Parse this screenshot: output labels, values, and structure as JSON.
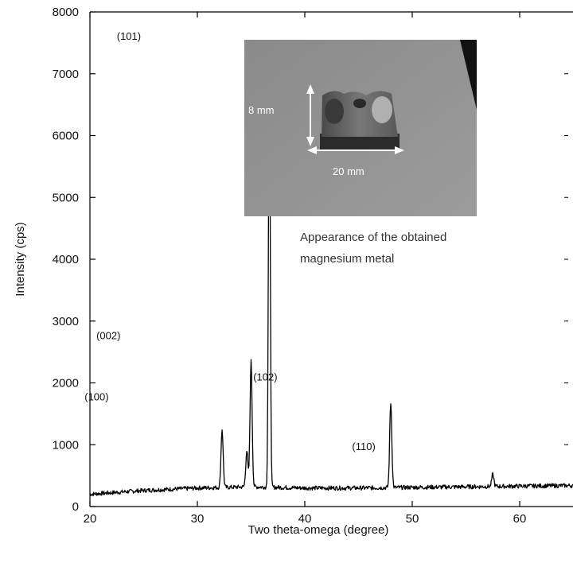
{
  "chart_data": {
    "type": "line",
    "xlabel": "Two theta-omega (degree)",
    "ylabel": "Intensity (cps)",
    "xlim": [
      20,
      65
    ],
    "ylim": [
      0,
      8000
    ],
    "x_ticks": [
      20,
      30,
      40,
      50,
      60
    ],
    "y_ticks": [
      0,
      1000,
      2000,
      3000,
      4000,
      5000,
      6000,
      7000,
      8000
    ],
    "grid": false,
    "baseline": [
      [
        20,
        200
      ],
      [
        25,
        260
      ],
      [
        30,
        300
      ],
      [
        35,
        320
      ],
      [
        40,
        300
      ],
      [
        45,
        300
      ],
      [
        50,
        310
      ],
      [
        55,
        320
      ],
      [
        60,
        330
      ],
      [
        65,
        340
      ]
    ],
    "peaks": [
      {
        "x": 32.3,
        "y": 1250
      },
      {
        "x": 34.6,
        "y": 900
      },
      {
        "x": 35.0,
        "y": 2350
      },
      {
        "x": 36.7,
        "y": 7250
      },
      {
        "x": 48.0,
        "y": 1680
      },
      {
        "x": 57.5,
        "y": 520
      }
    ],
    "annotations": [
      {
        "text": "(101)",
        "x": 22.5,
        "y": 7550
      },
      {
        "text": "(002)",
        "x": 20.6,
        "y": 2710
      },
      {
        "text": "(100)",
        "x": 19.5,
        "y": 1720
      },
      {
        "text": "(102)",
        "x": 35.2,
        "y": 2040
      },
      {
        "text": "(110)",
        "x": 44.4,
        "y": 910
      }
    ]
  },
  "inset": {
    "caption_line1": "Appearance of the obtained",
    "caption_line2": "magnesium metal",
    "height_label": "8 mm",
    "width_label": "20 mm"
  }
}
